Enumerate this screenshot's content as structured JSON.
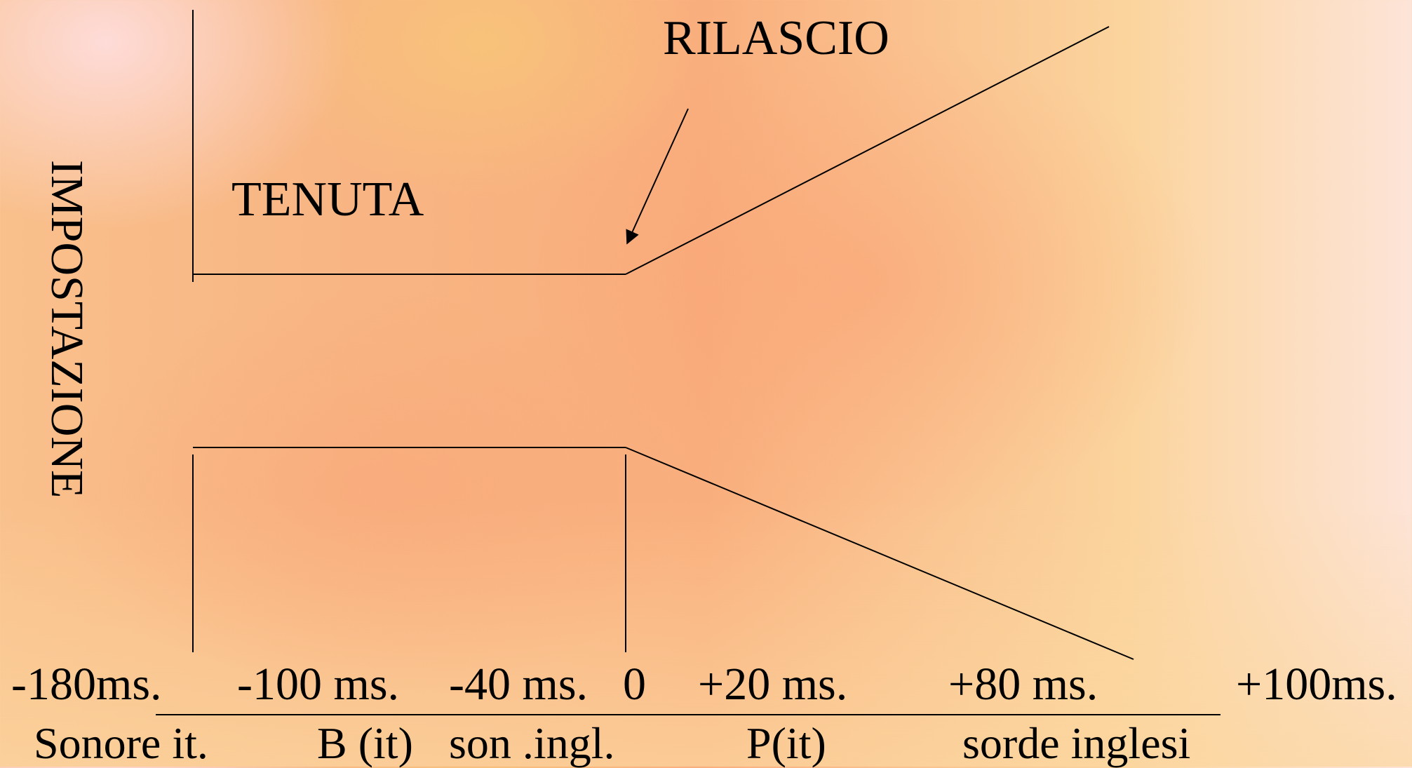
{
  "labels": {
    "impostazione": "IMPOSTAZIONE",
    "tenuta": "TENUTA",
    "rilascio": "RILASCIO"
  },
  "ticks": [
    "-180ms.",
    "-100 ms.",
    "-40 ms.",
    "0",
    "+20 ms.",
    "+80 ms.",
    "+100ms."
  ],
  "categories": [
    "Sonore it.",
    "B (it)",
    "son .ingl.",
    "P(it)",
    "sorde inglesi"
  ]
}
